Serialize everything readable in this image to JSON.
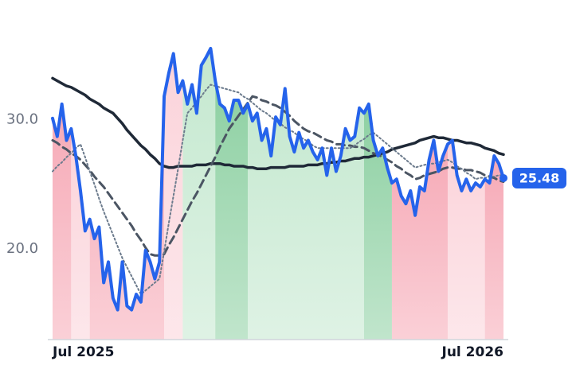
{
  "chart_data": {
    "type": "line",
    "x": [
      "Jul 2025",
      null,
      null,
      null,
      null,
      null,
      null,
      null,
      null,
      null,
      null,
      null,
      null,
      null,
      null,
      null,
      null,
      null,
      null,
      null,
      null,
      null,
      null,
      null,
      null,
      null,
      null,
      null,
      null,
      null,
      null,
      null,
      null,
      null,
      null,
      null,
      null,
      null,
      null,
      null,
      null,
      null,
      null,
      null,
      null,
      null,
      null,
      null,
      null,
      null,
      null,
      null,
      null,
      null,
      null,
      null,
      null,
      null,
      null,
      null,
      null,
      null,
      null,
      null,
      null,
      null,
      null,
      null,
      null,
      null,
      null,
      null,
      null,
      null,
      null,
      null,
      null,
      null,
      null,
      null,
      null,
      null,
      null,
      null,
      null,
      null,
      null,
      null,
      null,
      null,
      null,
      null,
      null,
      null,
      null,
      null,
      null,
      "Jul 2026"
    ],
    "ylim": [
      13,
      39
    ],
    "yticks": [
      {
        "value": 20,
        "label": "20.0"
      },
      {
        "value": 30,
        "label": "30.0"
      }
    ],
    "grid": false,
    "series": [
      {
        "color": "#2563eb",
        "width": 4,
        "dash": "solid",
        "values": [
          30.1,
          28.7,
          31.2,
          28.4,
          29.3,
          27.2,
          24.5,
          21.4,
          22.3,
          20.8,
          21.7,
          17.4,
          19.0,
          16.2,
          15.3,
          19.0,
          15.6,
          15.3,
          16.5,
          15.9,
          19.9,
          19.0,
          17.7,
          19.0,
          31.8,
          33.6,
          35.1,
          32.1,
          33.0,
          31.2,
          32.7,
          30.5,
          34.2,
          34.8,
          35.5,
          33.0,
          31.2,
          30.9,
          29.9,
          31.5,
          31.5,
          30.5,
          31.2,
          29.9,
          30.5,
          28.4,
          29.3,
          27.2,
          30.2,
          29.6,
          32.4,
          28.7,
          27.5,
          29.0,
          27.8,
          28.4,
          27.5,
          26.9,
          27.8,
          25.7,
          27.8,
          26.0,
          27.2,
          29.3,
          28.4,
          28.7,
          30.9,
          30.5,
          31.2,
          28.4,
          27.2,
          27.8,
          26.3,
          25.1,
          25.4,
          24.1,
          23.5,
          24.5,
          22.6,
          24.8,
          24.5,
          26.9,
          28.4,
          26.0,
          27.2,
          28.1,
          28.4,
          25.7,
          24.5,
          25.4,
          24.5,
          25.1,
          24.8,
          25.4,
          25.1,
          27.2,
          26.6,
          25.48
        ]
      },
      {
        "color": "#6b7a8c",
        "width": 2,
        "dash": "dotted",
        "values": [
          26.0,
          26.4,
          26.7,
          27.1,
          27.4,
          27.8,
          28.1,
          27.1,
          26.0,
          25.0,
          23.9,
          22.9,
          22.0,
          21.1,
          20.2,
          19.3,
          18.6,
          17.9,
          17.2,
          16.5,
          16.8,
          17.1,
          17.4,
          17.7,
          19.8,
          22.0,
          24.1,
          26.2,
          28.4,
          30.5,
          30.9,
          31.4,
          31.8,
          32.3,
          32.7,
          32.6,
          32.5,
          32.4,
          32.3,
          32.2,
          32.1,
          31.8,
          31.6,
          31.3,
          31.0,
          30.7,
          30.5,
          30.2,
          29.9,
          29.7,
          29.4,
          29.2,
          29.0,
          28.7,
          28.5,
          28.3,
          28.0,
          27.8,
          27.8,
          27.8,
          27.8,
          27.8,
          27.8,
          27.8,
          27.8,
          28.0,
          28.3,
          28.5,
          28.8,
          29.0,
          28.7,
          28.4,
          28.1,
          27.8,
          27.5,
          27.2,
          26.9,
          26.6,
          26.3,
          26.4,
          26.5,
          26.6,
          26.6,
          26.7,
          26.8,
          26.9,
          26.7,
          26.4,
          26.2,
          25.9,
          25.7,
          25.4,
          25.5,
          25.5,
          25.6,
          25.6,
          25.7,
          25.7
        ]
      },
      {
        "color": "#4b5563",
        "width": 3,
        "dash": "dashed",
        "values": [
          28.4,
          28.2,
          27.9,
          27.7,
          27.4,
          27.2,
          26.9,
          26.5,
          26.1,
          25.6,
          25.2,
          24.8,
          24.3,
          23.8,
          23.3,
          22.8,
          22.3,
          21.8,
          21.2,
          20.7,
          20.1,
          19.6,
          19.5,
          19.5,
          19.6,
          20.3,
          20.9,
          21.6,
          22.3,
          23.0,
          23.7,
          24.3,
          25.0,
          25.7,
          26.4,
          27.1,
          27.9,
          28.6,
          29.3,
          29.8,
          30.3,
          30.8,
          31.3,
          31.8,
          31.7,
          31.5,
          31.4,
          31.2,
          31.1,
          30.9,
          30.6,
          30.3,
          29.9,
          29.6,
          29.3,
          29.1,
          29.0,
          28.8,
          28.6,
          28.4,
          28.3,
          28.1,
          28.1,
          28.0,
          28.0,
          27.9,
          27.9,
          27.8,
          27.6,
          27.4,
          27.3,
          27.1,
          26.9,
          26.7,
          26.4,
          26.2,
          25.9,
          25.7,
          25.4,
          25.5,
          25.7,
          25.8,
          25.9,
          26.0,
          26.2,
          26.3,
          26.3,
          26.2,
          26.2,
          26.1,
          26.1,
          26.0,
          25.9,
          25.7,
          25.6,
          25.5,
          25.3,
          25.2
        ]
      },
      {
        "color": "#1f2937",
        "width": 3.5,
        "dash": "solid",
        "values": [
          33.2,
          33.0,
          32.8,
          32.6,
          32.5,
          32.3,
          32.1,
          31.9,
          31.6,
          31.4,
          31.2,
          30.9,
          30.7,
          30.5,
          30.1,
          29.7,
          29.2,
          28.8,
          28.4,
          28.0,
          27.7,
          27.3,
          27.0,
          26.6,
          26.4,
          26.3,
          26.3,
          26.4,
          26.4,
          26.4,
          26.4,
          26.5,
          26.5,
          26.5,
          26.6,
          26.6,
          26.6,
          26.5,
          26.5,
          26.4,
          26.4,
          26.4,
          26.3,
          26.3,
          26.2,
          26.2,
          26.2,
          26.3,
          26.3,
          26.3,
          26.3,
          26.4,
          26.4,
          26.4,
          26.4,
          26.5,
          26.5,
          26.5,
          26.6,
          26.6,
          26.7,
          26.7,
          26.8,
          26.8,
          26.9,
          27.0,
          27.0,
          27.1,
          27.1,
          27.2,
          27.3,
          27.4,
          27.5,
          27.7,
          27.8,
          27.9,
          28.0,
          28.1,
          28.2,
          28.4,
          28.5,
          28.6,
          28.7,
          28.6,
          28.6,
          28.5,
          28.4,
          28.4,
          28.3,
          28.2,
          28.2,
          28.1,
          28.0,
          27.8,
          27.7,
          27.6,
          27.4,
          27.3
        ]
      }
    ],
    "bands": [
      {
        "start": 0,
        "end": 4,
        "color": "#f6a9b6"
      },
      {
        "start": 4,
        "end": 8,
        "color": "#fbd3da"
      },
      {
        "start": 8,
        "end": 24,
        "color": "#f6a9b6"
      },
      {
        "start": 24,
        "end": 28,
        "color": "#fbd3da"
      },
      {
        "start": 28,
        "end": 35,
        "color": "#c4e8cf"
      },
      {
        "start": 35,
        "end": 42,
        "color": "#8dd0a2"
      },
      {
        "start": 42,
        "end": 67,
        "color": "#c4e8cf"
      },
      {
        "start": 67,
        "end": 73,
        "color": "#8dd0a2"
      },
      {
        "start": 73,
        "end": 85,
        "color": "#f6a9b6"
      },
      {
        "start": 85,
        "end": 93,
        "color": "#fbd3da"
      },
      {
        "start": 93,
        "end": 97,
        "color": "#f6a9b6"
      }
    ]
  }
}
